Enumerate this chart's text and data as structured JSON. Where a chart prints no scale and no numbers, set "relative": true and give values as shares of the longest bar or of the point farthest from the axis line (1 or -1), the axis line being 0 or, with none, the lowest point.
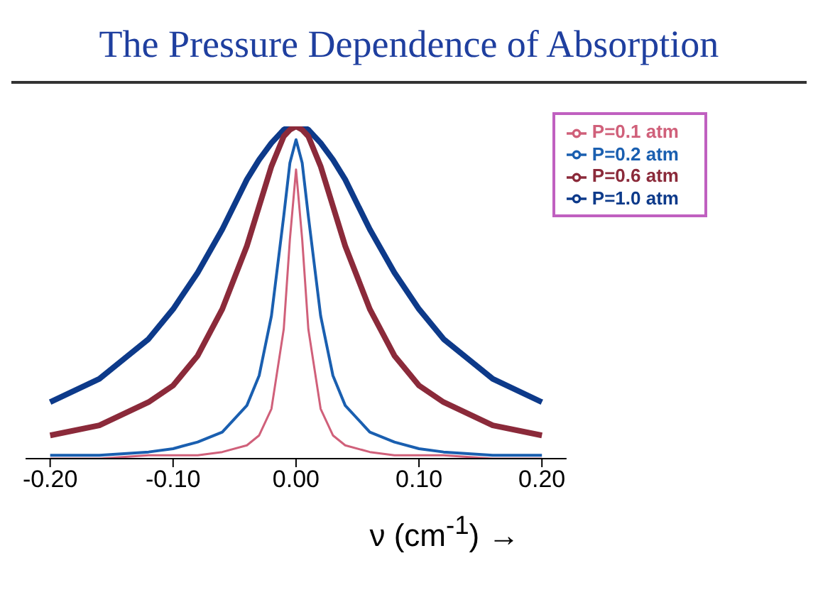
{
  "chart_data": {
    "type": "line",
    "title": "The Pressure Dependence of Absorption",
    "xlabel": "ν (cm$^{-1}$) →",
    "relative": true,
    "x": [
      -0.2,
      -0.16,
      -0.12,
      -0.1,
      -0.08,
      -0.06,
      -0.04,
      -0.03,
      -0.02,
      -0.01,
      -0.005,
      0,
      0.005,
      0.01,
      0.02,
      0.03,
      0.04,
      0.06,
      0.08,
      0.1,
      0.12,
      0.16,
      0.2
    ],
    "series": [
      {
        "name": "P=1.0 atm",
        "color": "#0d3a8a",
        "values": [
          0.17,
          0.24,
          0.36,
          0.45,
          0.56,
          0.69,
          0.84,
          0.9,
          0.95,
          0.99,
          1,
          1,
          1,
          0.99,
          0.95,
          0.9,
          0.84,
          0.69,
          0.56,
          0.45,
          0.36,
          0.24,
          0.17
        ]
      },
      {
        "name": "P=0.6 atm",
        "color": "#8b2a3a",
        "values": [
          0.07,
          0.1,
          0.17,
          0.22,
          0.31,
          0.45,
          0.64,
          0.76,
          0.88,
          0.97,
          0.99,
          1,
          0.99,
          0.97,
          0.88,
          0.76,
          0.64,
          0.45,
          0.31,
          0.22,
          0.17,
          0.1,
          0.07
        ]
      },
      {
        "name": "P=0.2 atm",
        "color": "#1a5fb0",
        "values": [
          0.01,
          0.01,
          0.02,
          0.03,
          0.05,
          0.08,
          0.16,
          0.25,
          0.43,
          0.73,
          0.89,
          0.96,
          0.89,
          0.73,
          0.43,
          0.25,
          0.16,
          0.08,
          0.05,
          0.03,
          0.02,
          0.01,
          0.01
        ]
      },
      {
        "name": "P=0.1 atm",
        "color": "#d0607a",
        "values": [
          0,
          0,
          0.01,
          0.01,
          0.01,
          0.02,
          0.04,
          0.07,
          0.15,
          0.39,
          0.66,
          0.87,
          0.66,
          0.39,
          0.15,
          0.07,
          0.04,
          0.02,
          0.01,
          0.01,
          0.01,
          0,
          0
        ]
      }
    ],
    "xlim": [
      -0.22,
      0.22
    ],
    "xticks": [
      {
        "value": -0.2,
        "label": "-0.20"
      },
      {
        "value": -0.1,
        "label": "-0.10"
      },
      {
        "value": 0,
        "label": "0.00"
      },
      {
        "value": 0.1,
        "label": "0.10"
      },
      {
        "value": 0.2,
        "label": "0.20"
      }
    ],
    "legend": "top right",
    "grid": false,
    "marker": "none",
    "line_style": "solid"
  }
}
